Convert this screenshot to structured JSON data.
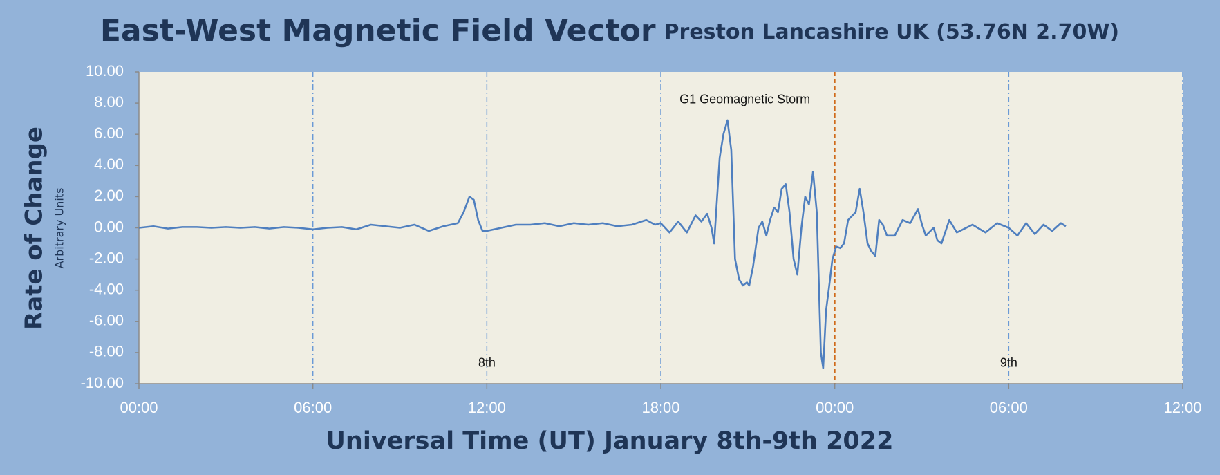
{
  "chart_data": {
    "type": "line",
    "title": "East-West Magnetic Field Vector",
    "subtitle": "Preston Lancashire UK (53.76N 2.70W)",
    "y_label": "Rate of Change",
    "y_sublabel": "Arbitrary Units",
    "x_label": "Universal Time (UT) January 8th-9th 2022",
    "color": "#4f7fbf",
    "x": [
      0,
      0.5,
      1,
      1.5,
      2,
      2.5,
      3,
      3.5,
      4,
      4.5,
      5,
      5.5,
      6,
      6.5,
      7,
      7.5,
      8,
      8.5,
      9,
      9.5,
      10,
      10.5,
      11,
      11.2,
      11.4,
      11.55,
      11.7,
      11.85,
      12,
      12.5,
      13,
      13.5,
      14,
      14.5,
      15,
      15.5,
      16,
      16.5,
      17,
      17.5,
      17.8,
      18,
      18.3,
      18.6,
      18.9,
      19.2,
      19.4,
      19.6,
      19.75,
      19.84,
      20.03,
      20.16,
      20.3,
      20.43,
      20.56,
      20.7,
      20.83,
      20.97,
      21.05,
      21.18,
      21.37,
      21.5,
      21.64,
      21.77,
      21.91,
      22.04,
      22.17,
      22.31,
      22.44,
      22.58,
      22.71,
      22.85,
      22.98,
      23.11,
      23.25,
      23.38,
      23.52,
      23.6,
      23.7,
      23.79,
      23.92,
      24.05,
      24.19,
      24.32,
      24.46,
      24.72,
      24.86,
      24.99,
      25.13,
      25.26,
      25.4,
      25.53,
      25.66,
      25.8,
      26.07,
      26.34,
      26.6,
      26.87,
      27.01,
      27.14,
      27.41,
      27.54,
      27.68,
      27.95,
      28.21,
      28.75,
      29.2,
      29.6,
      30,
      30.3,
      30.6,
      30.9,
      31.2,
      31.5,
      31.8,
      31.97
    ],
    "values": [
      0,
      0.1,
      -0.05,
      0.05,
      0.05,
      0,
      0.05,
      0,
      0.05,
      -0.05,
      0.05,
      0,
      -0.1,
      0,
      0.05,
      -0.1,
      0.2,
      0.1,
      0,
      0.2,
      -0.2,
      0.1,
      0.3,
      1,
      2,
      1.8,
      0.5,
      -0.2,
      -0.2,
      0,
      0.2,
      0.2,
      0.3,
      0.1,
      0.3,
      0.2,
      0.3,
      0.1,
      0.2,
      0.5,
      0.2,
      0.3,
      -0.3,
      0.4,
      -0.3,
      0.8,
      0.4,
      0.9,
      0,
      -1,
      4.5,
      6,
      6.9,
      5,
      -2,
      -3.3,
      -3.7,
      -3.5,
      -3.7,
      -2.5,
      0,
      0.4,
      -0.5,
      0.5,
      1.3,
      1,
      2.5,
      2.8,
      1,
      -2,
      -3,
      0,
      2,
      1.5,
      3.6,
      1,
      -8,
      -9,
      -5.3,
      -4,
      -2,
      -1.2,
      -1.3,
      -1,
      0.5,
      1,
      2.5,
      1,
      -1,
      -1.5,
      -1.8,
      0.5,
      0.2,
      -0.5,
      -0.5,
      0.5,
      0.3,
      1.2,
      0.2,
      -0.5,
      0,
      -0.8,
      -1,
      0.5,
      -0.3,
      0.2,
      -0.3,
      0.3,
      0,
      -0.5,
      0.3,
      -0.4,
      0.2,
      -0.2,
      0.3,
      0.1
    ],
    "xlim": [
      0,
      36
    ],
    "xticks": [
      {
        "value": 0,
        "label": "00:00"
      },
      {
        "value": 6,
        "label": "06:00"
      },
      {
        "value": 12,
        "label": "12:00"
      },
      {
        "value": 18,
        "label": "18:00"
      },
      {
        "value": 24,
        "label": "00:00"
      },
      {
        "value": 30,
        "label": "06:00"
      },
      {
        "value": 36,
        "label": "12:00"
      }
    ],
    "ylim": [
      -10,
      10
    ],
    "yticks": [
      {
        "value": -10,
        "label": "-10.00"
      },
      {
        "value": -8,
        "label": "-8.00"
      },
      {
        "value": -6,
        "label": "-6.00"
      },
      {
        "value": -4,
        "label": "-4.00"
      },
      {
        "value": -2,
        "label": "-2.00"
      },
      {
        "value": 0,
        "label": "0.00"
      },
      {
        "value": 2,
        "label": "2.00"
      },
      {
        "value": 4,
        "label": "4.00"
      },
      {
        "value": 6,
        "label": "6.00"
      },
      {
        "value": 8,
        "label": "8.00"
      },
      {
        "value": 10,
        "label": "10.00"
      }
    ],
    "vlines": [
      {
        "x": 6,
        "color": "#6a9ad6"
      },
      {
        "x": 12,
        "color": "#6a9ad6"
      },
      {
        "x": 18,
        "color": "#6a9ad6"
      },
      {
        "x": 24,
        "color": "#d06a1a"
      },
      {
        "x": 30,
        "color": "#6a9ad6"
      },
      {
        "x": 36,
        "color": "#6a9ad6"
      }
    ],
    "annotations": [
      {
        "text": "8th",
        "x": 12,
        "y": -8.7
      },
      {
        "text": "9th",
        "x": 30,
        "y": -8.7
      },
      {
        "text": "G1 Geomagnetic Storm",
        "x": 20.9,
        "y": 8.2
      }
    ]
  }
}
